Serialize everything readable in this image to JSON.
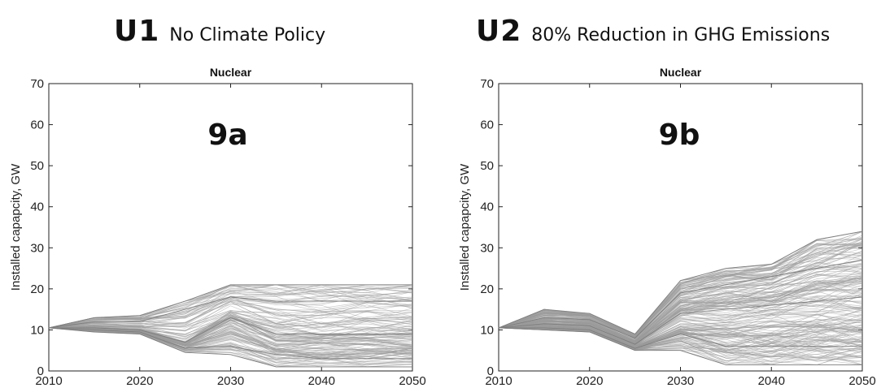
{
  "header": {
    "left": {
      "code": "U1",
      "subtitle": "No Climate Policy"
    },
    "right": {
      "code": "U2",
      "subtitle": "80% Reduction in GHG Emissions"
    }
  },
  "colors": {
    "line": "#9a9a9a",
    "axis": "#222222"
  },
  "chart_data": [
    {
      "type": "line",
      "title": "Nuclear",
      "panel_label": "9a",
      "xlabel": "",
      "ylabel": "Installed capapcity, GW",
      "xlim": [
        2010,
        2050
      ],
      "ylim": [
        0,
        70
      ],
      "xticks": [
        2010,
        2020,
        2030,
        2040,
        2050
      ],
      "yticks": [
        0,
        10,
        20,
        30,
        40,
        50,
        60,
        70
      ],
      "x": [
        2010,
        2015,
        2020,
        2025,
        2030,
        2035,
        2040,
        2045,
        2050
      ],
      "series_summary": {
        "max": [
          10.5,
          13,
          13.5,
          17,
          21,
          21,
          21,
          21,
          21
        ],
        "upper": [
          10.5,
          12,
          12,
          15,
          18,
          17,
          17,
          17,
          17
        ],
        "median": [
          10.5,
          10.5,
          10,
          7,
          13,
          9,
          9,
          9,
          9
        ],
        "lower": [
          10.5,
          10,
          9.5,
          5.5,
          6,
          4,
          3,
          3,
          3
        ],
        "min": [
          10.5,
          9.5,
          9,
          4.5,
          4,
          1,
          1,
          1,
          1
        ]
      }
    },
    {
      "type": "line",
      "title": "Nuclear",
      "panel_label": "9b",
      "xlabel": "",
      "ylabel": "Installed capapcity, GW",
      "xlim": [
        2010,
        2050
      ],
      "ylim": [
        0,
        70
      ],
      "xticks": [
        2010,
        2020,
        2030,
        2040,
        2050
      ],
      "yticks": [
        0,
        10,
        20,
        30,
        40,
        50,
        60,
        70
      ],
      "x": [
        2010,
        2015,
        2020,
        2025,
        2030,
        2035,
        2040,
        2045,
        2050
      ],
      "series_summary": {
        "max": [
          10.5,
          15,
          14,
          9,
          22,
          25,
          26,
          32,
          34
        ],
        "upper": [
          10.5,
          13,
          12.5,
          8,
          19,
          21,
          23,
          25,
          27
        ],
        "median": [
          10.5,
          11.5,
          11,
          6.5,
          14,
          15,
          16,
          17,
          18
        ],
        "lower": [
          10.5,
          10.5,
          10,
          5.5,
          9,
          6,
          6,
          6,
          6
        ],
        "min": [
          10.5,
          10,
          9.5,
          5,
          5,
          1.5,
          1.5,
          1.5,
          1.5
        ]
      }
    }
  ]
}
